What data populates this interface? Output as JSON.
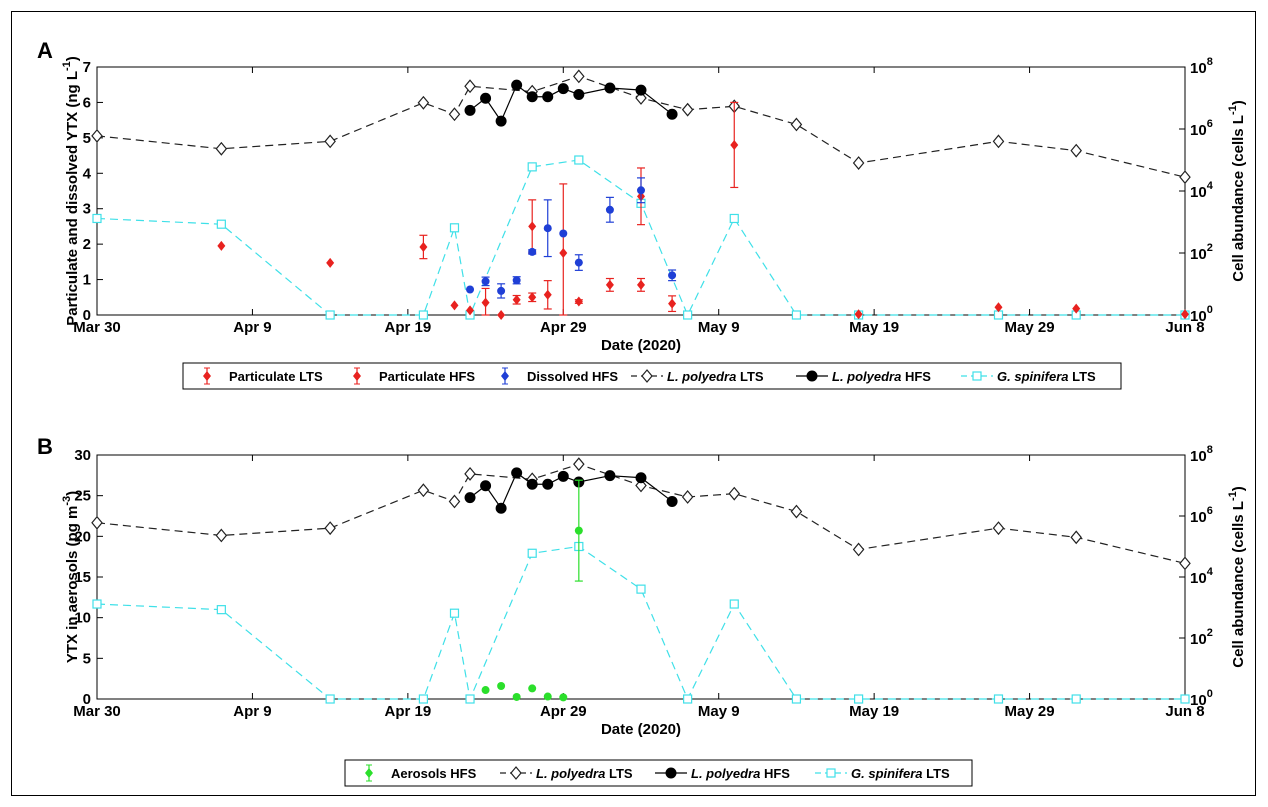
{
  "figure": {
    "x_dates": [
      "Mar 30",
      "Apr 9",
      "Apr 19",
      "Apr 29",
      "May 9",
      "May 19",
      "May 29",
      "Jun 8"
    ],
    "colors": {
      "red": "#e8221f",
      "blue": "#1f3fd6",
      "green": "#2bdf2b",
      "cyan": "#3fe0e8",
      "black": "#000000",
      "dashed_black": "#222222"
    }
  },
  "chart_data": [
    {
      "panel_label": "A",
      "type": "scatter",
      "xlabel": "Date (2020)",
      "ylabel": "Particulate and dissolved YTX (ng L",
      "ylabel_sup": "-1",
      "ylabel_end": ")",
      "ylabel_right": "Cell abundance (cells L",
      "ylabel_right_sup": "-1",
      "ylabel_right_end": ")",
      "x_range": [
        "2020-03-30",
        "2020-06-08"
      ],
      "xticks": [
        "Mar 30",
        "Apr 9",
        "Apr 19",
        "Apr 29",
        "May 9",
        "May 19",
        "May 29",
        "Jun 8"
      ],
      "ylim": [
        0,
        7
      ],
      "yticks": [
        "0",
        "1",
        "2",
        "3",
        "4",
        "5",
        "6",
        "7"
      ],
      "y2_log": true,
      "y2_range": [
        1,
        100000000
      ],
      "y2ticks": [
        {
          "base": "10",
          "exp": "0"
        },
        {
          "base": "10",
          "exp": "2"
        },
        {
          "base": "10",
          "exp": "4"
        },
        {
          "base": "10",
          "exp": "6"
        },
        {
          "base": "10",
          "exp": "8"
        }
      ],
      "legend": [
        "Particulate LTS",
        "Particulate HFS",
        "Dissolved HFS",
        "L. polyedra LTS",
        "L. polyedra HFS",
        "G. spinifera LTS"
      ],
      "series": [
        {
          "name": "Particulate LTS",
          "kind": "errorbar",
          "color": "#e8221f",
          "axis": "left",
          "points": [
            {
              "x": "2020-04-07",
              "y": 1.95,
              "err": 0
            },
            {
              "x": "2020-04-14",
              "y": 1.47,
              "err": 0
            },
            {
              "x": "2020-04-20",
              "y": 1.92,
              "err": 0.33
            },
            {
              "x": "2020-05-10",
              "y": 4.8,
              "err": 1.2
            },
            {
              "x": "2020-05-18",
              "y": 0.02,
              "err": 0
            },
            {
              "x": "2020-05-27",
              "y": 0.22,
              "err": 0
            },
            {
              "x": "2020-06-01",
              "y": 0.18,
              "err": 0
            },
            {
              "x": "2020-06-08",
              "y": 0.02,
              "err": 0
            }
          ]
        },
        {
          "name": "Particulate HFS",
          "kind": "errorbar",
          "color": "#e8221f",
          "axis": "left",
          "points": [
            {
              "x": "2020-04-22",
              "y": 0.27,
              "err": 0
            },
            {
              "x": "2020-04-23",
              "y": 0.13,
              "err": 0
            },
            {
              "x": "2020-04-24",
              "y": 0.35,
              "err": 0.4
            },
            {
              "x": "2020-04-25",
              "y": 0.0,
              "err": 0
            },
            {
              "x": "2020-04-26",
              "y": 0.43,
              "err": 0.12
            },
            {
              "x": "2020-04-27",
              "y": 0.5,
              "err": 0.12
            },
            {
              "x": "2020-04-27",
              "y": 2.5,
              "err": 0.75
            },
            {
              "x": "2020-04-28",
              "y": 0.57,
              "err": 0.4
            },
            {
              "x": "2020-04-29",
              "y": 1.75,
              "err": 1.95
            },
            {
              "x": "2020-04-30",
              "y": 0.38,
              "err": 0.05
            },
            {
              "x": "2020-05-02",
              "y": 0.85,
              "err": 0.18
            },
            {
              "x": "2020-05-04",
              "y": 3.35,
              "err": 0.8
            },
            {
              "x": "2020-05-04",
              "y": 0.85,
              "err": 0.18
            },
            {
              "x": "2020-05-06",
              "y": 0.32,
              "err": 0.22
            }
          ]
        },
        {
          "name": "Dissolved HFS",
          "kind": "errorbar",
          "color": "#1f3fd6",
          "axis": "left",
          "points": [
            {
              "x": "2020-04-23",
              "y": 0.72,
              "err": 0
            },
            {
              "x": "2020-04-24",
              "y": 0.95,
              "err": 0.12
            },
            {
              "x": "2020-04-25",
              "y": 0.68,
              "err": 0.2
            },
            {
              "x": "2020-04-26",
              "y": 0.98,
              "err": 0.1
            },
            {
              "x": "2020-04-27",
              "y": 1.78,
              "err": 0.06
            },
            {
              "x": "2020-04-28",
              "y": 2.45,
              "err": 0.8
            },
            {
              "x": "2020-04-29",
              "y": 2.3,
              "err": 0
            },
            {
              "x": "2020-04-30",
              "y": 1.48,
              "err": 0.22
            },
            {
              "x": "2020-05-02",
              "y": 2.97,
              "err": 0.35
            },
            {
              "x": "2020-05-04",
              "y": 3.52,
              "err": 0.35
            },
            {
              "x": "2020-05-06",
              "y": 1.12,
              "err": 0.15
            }
          ]
        },
        {
          "name": "L. polyedra LTS",
          "kind": "line",
          "style": "dashed",
          "marker": "diamond",
          "color": "#222222",
          "axis": "right",
          "points": [
            {
              "x": "2020-03-30",
              "y": 600000
            },
            {
              "x": "2020-04-07",
              "y": 230000
            },
            {
              "x": "2020-04-14",
              "y": 400000
            },
            {
              "x": "2020-04-20",
              "y": 7000000
            },
            {
              "x": "2020-04-22",
              "y": 3000000
            },
            {
              "x": "2020-04-23",
              "y": 24000000
            },
            {
              "x": "2020-04-27",
              "y": 16000000
            },
            {
              "x": "2020-04-30",
              "y": 50000000
            },
            {
              "x": "2020-05-04",
              "y": 10000000
            },
            {
              "x": "2020-05-07",
              "y": 4200000
            },
            {
              "x": "2020-05-10",
              "y": 5400000
            },
            {
              "x": "2020-05-14",
              "y": 1400000
            },
            {
              "x": "2020-05-18",
              "y": 80000
            },
            {
              "x": "2020-05-27",
              "y": 400000
            },
            {
              "x": "2020-06-01",
              "y": 200000
            },
            {
              "x": "2020-06-08",
              "y": 28000
            }
          ]
        },
        {
          "name": "L. polyedra HFS",
          "kind": "line",
          "style": "solid",
          "marker": "circle",
          "color": "#000000",
          "axis": "right",
          "points": [
            {
              "x": "2020-04-23",
              "y": 4000000
            },
            {
              "x": "2020-04-24",
              "y": 9800000
            },
            {
              "x": "2020-04-25",
              "y": 1800000
            },
            {
              "x": "2020-04-26",
              "y": 26000000
            },
            {
              "x": "2020-04-27",
              "y": 11000000
            },
            {
              "x": "2020-04-28",
              "y": 11000000
            },
            {
              "x": "2020-04-29",
              "y": 20000000
            },
            {
              "x": "2020-04-30",
              "y": 13000000
            },
            {
              "x": "2020-05-02",
              "y": 21000000
            },
            {
              "x": "2020-05-04",
              "y": 18000000
            },
            {
              "x": "2020-05-06",
              "y": 3000000
            }
          ]
        },
        {
          "name": "G. spinifera LTS",
          "kind": "line",
          "style": "dashed",
          "marker": "square",
          "color": "#3fe0e8",
          "axis": "right",
          "points": [
            {
              "x": "2020-03-30",
              "y": 1300
            },
            {
              "x": "2020-04-07",
              "y": 850
            },
            {
              "x": "2020-04-14",
              "y": 1
            },
            {
              "x": "2020-04-20",
              "y": 1
            },
            {
              "x": "2020-04-22",
              "y": 650
            },
            {
              "x": "2020-04-23",
              "y": 1
            },
            {
              "x": "2020-04-27",
              "y": 60000
            },
            {
              "x": "2020-04-30",
              "y": 100000
            },
            {
              "x": "2020-05-04",
              "y": 4000
            },
            {
              "x": "2020-05-07",
              "y": 1
            },
            {
              "x": "2020-05-10",
              "y": 1300
            },
            {
              "x": "2020-05-14",
              "y": 1
            },
            {
              "x": "2020-05-18",
              "y": 1
            },
            {
              "x": "2020-05-27",
              "y": 1
            },
            {
              "x": "2020-06-01",
              "y": 1
            },
            {
              "x": "2020-06-08",
              "y": 1
            }
          ]
        }
      ]
    },
    {
      "panel_label": "B",
      "type": "scatter",
      "xlabel": "Date (2020)",
      "ylabel": "YTX in aerosols (pg  m",
      "ylabel_sup": "-3",
      "ylabel_end": ")",
      "ylabel_right": "Cell abundance (cells L",
      "ylabel_right_sup": "-1",
      "ylabel_right_end": ")",
      "x_range": [
        "2020-03-30",
        "2020-06-08"
      ],
      "xticks": [
        "Mar 30",
        "Apr 9",
        "Apr 19",
        "Apr 29",
        "May 9",
        "May 19",
        "May 29",
        "Jun 8"
      ],
      "ylim": [
        0,
        30
      ],
      "yticks": [
        "0",
        "5",
        "10",
        "15",
        "20",
        "25",
        "30"
      ],
      "y2_log": true,
      "y2_range": [
        1,
        100000000
      ],
      "y2ticks": [
        {
          "base": "10",
          "exp": "0"
        },
        {
          "base": "10",
          "exp": "2"
        },
        {
          "base": "10",
          "exp": "4"
        },
        {
          "base": "10",
          "exp": "6"
        },
        {
          "base": "10",
          "exp": "8"
        }
      ],
      "legend": [
        "Aerosols HFS",
        "L. polyedra LTS",
        "L. polyedra HFS",
        "G. spinifera LTS"
      ],
      "series": [
        {
          "name": "Aerosols HFS",
          "kind": "errorbar",
          "color": "#2bdf2b",
          "axis": "left",
          "points": [
            {
              "x": "2020-04-24",
              "y": 1.1,
              "err": 0
            },
            {
              "x": "2020-04-25",
              "y": 1.6,
              "err": 0
            },
            {
              "x": "2020-04-26",
              "y": 0.25,
              "err": 0
            },
            {
              "x": "2020-04-27",
              "y": 1.3,
              "err": 0
            },
            {
              "x": "2020-04-28",
              "y": 0.3,
              "err": 0
            },
            {
              "x": "2020-04-29",
              "y": 0.2,
              "err": 0
            },
            {
              "x": "2020-04-30",
              "y": 20.7,
              "err": 6.2
            }
          ]
        },
        {
          "name": "L. polyedra LTS",
          "kind": "line",
          "style": "dashed",
          "marker": "diamond",
          "color": "#222222",
          "axis": "right",
          "points": [
            {
              "x": "2020-03-30",
              "y": 600000
            },
            {
              "x": "2020-04-07",
              "y": 230000
            },
            {
              "x": "2020-04-14",
              "y": 400000
            },
            {
              "x": "2020-04-20",
              "y": 7000000
            },
            {
              "x": "2020-04-22",
              "y": 3000000
            },
            {
              "x": "2020-04-23",
              "y": 24000000
            },
            {
              "x": "2020-04-27",
              "y": 16000000
            },
            {
              "x": "2020-04-30",
              "y": 50000000
            },
            {
              "x": "2020-05-04",
              "y": 10000000
            },
            {
              "x": "2020-05-07",
              "y": 4200000
            },
            {
              "x": "2020-05-10",
              "y": 5400000
            },
            {
              "x": "2020-05-14",
              "y": 1400000
            },
            {
              "x": "2020-05-18",
              "y": 80000
            },
            {
              "x": "2020-05-27",
              "y": 400000
            },
            {
              "x": "2020-06-01",
              "y": 200000
            },
            {
              "x": "2020-06-08",
              "y": 28000
            }
          ]
        },
        {
          "name": "L. polyedra HFS",
          "kind": "line",
          "style": "solid",
          "marker": "circle",
          "color": "#000000",
          "axis": "right",
          "points": [
            {
              "x": "2020-04-23",
              "y": 4000000
            },
            {
              "x": "2020-04-24",
              "y": 9800000
            },
            {
              "x": "2020-04-25",
              "y": 1800000
            },
            {
              "x": "2020-04-26",
              "y": 26000000
            },
            {
              "x": "2020-04-27",
              "y": 11000000
            },
            {
              "x": "2020-04-28",
              "y": 11000000
            },
            {
              "x": "2020-04-29",
              "y": 20000000
            },
            {
              "x": "2020-04-30",
              "y": 13000000
            },
            {
              "x": "2020-05-02",
              "y": 21000000
            },
            {
              "x": "2020-05-04",
              "y": 18000000
            },
            {
              "x": "2020-05-06",
              "y": 3000000
            }
          ]
        },
        {
          "name": "G. spinifera LTS",
          "kind": "line",
          "style": "dashed",
          "marker": "square",
          "color": "#3fe0e8",
          "axis": "right",
          "points": [
            {
              "x": "2020-03-30",
              "y": 1300
            },
            {
              "x": "2020-04-07",
              "y": 850
            },
            {
              "x": "2020-04-14",
              "y": 1
            },
            {
              "x": "2020-04-20",
              "y": 1
            },
            {
              "x": "2020-04-22",
              "y": 650
            },
            {
              "x": "2020-04-23",
              "y": 1
            },
            {
              "x": "2020-04-27",
              "y": 60000
            },
            {
              "x": "2020-04-30",
              "y": 100000
            },
            {
              "x": "2020-05-04",
              "y": 4000
            },
            {
              "x": "2020-05-07",
              "y": 1
            },
            {
              "x": "2020-05-10",
              "y": 1300
            },
            {
              "x": "2020-05-14",
              "y": 1
            },
            {
              "x": "2020-05-18",
              "y": 1
            },
            {
              "x": "2020-05-27",
              "y": 1
            },
            {
              "x": "2020-06-01",
              "y": 1
            },
            {
              "x": "2020-06-08",
              "y": 1
            }
          ]
        }
      ]
    }
  ]
}
